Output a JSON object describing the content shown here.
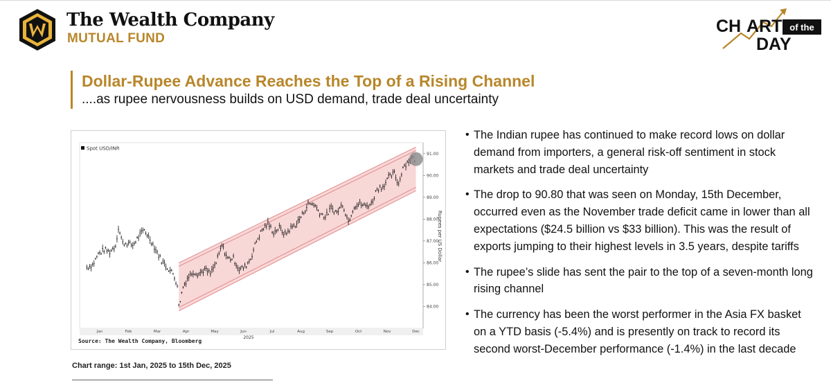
{
  "header": {
    "brand_name": "The Wealth Company",
    "brand_sub": "MUTUAL FUND",
    "badge_line1_a": "CH",
    "badge_line1_b": "ART",
    "badge_of_the": "of the",
    "badge_line2": "DAY",
    "brand_color": "#b8862a"
  },
  "title": "Dollar-Rupee Advance Reaches the Top of a Rising Channel",
  "subtitle": "....as rupee nervousness builds on USD demand, trade deal uncertainty",
  "chart_range": "Chart range: 1st Jan, 2025 to 15th Dec, 2025",
  "bullets": [
    "The Indian rupee has continued to make record lows on dollar demand from importers, a general risk-off sentiment in stock markets and trade deal uncertainty",
    "The drop to 90.80 that was seen on Monday, 15th December, occurred even as the November trade deficit came in lower than all expectations ($24.5 billion vs $33 billion). This was the result of exports jumping to their highest levels in 3.5 years, despite tariffs",
    "The rupee’s slide has sent the pair to the top of a seven-month long rising channel",
    "The currency has been the worst performer in the Asia FX basket on a YTD basis (-5.4%) and is presently on track to record its second worst-December performance (-1.4%) in the last decade"
  ],
  "chart_data": {
    "type": "ohlc",
    "legend": "Spot USD/INR",
    "ylabel": "Rupees per US Dollar",
    "xlabel": "2025",
    "source": "Source: The Wealth Company, Bloomberg",
    "ylim": [
      83.0,
      91.5
    ],
    "y_ticks": [
      "84.00",
      "85.00",
      "86.00",
      "87.00",
      "88.00",
      "89.00",
      "90.00",
      "91.00"
    ],
    "x_ticks": [
      "Jan",
      "Feb",
      "Mar",
      "Apr",
      "May",
      "Jun",
      "Jul",
      "Aug",
      "Sep",
      "Oct",
      "Nov",
      "Dec"
    ],
    "month_values": [
      1,
      2,
      3,
      4,
      5,
      6,
      7,
      8,
      9,
      10,
      11,
      12
    ],
    "series": [
      {
        "x": [
          1.0,
          1.2,
          1.4,
          1.6,
          1.8,
          2.0,
          2.1,
          2.25,
          2.4,
          2.6,
          2.8,
          3.0,
          3.2,
          3.4,
          3.6,
          3.8,
          4.0,
          4.15,
          4.2,
          4.35,
          4.5,
          4.7,
          4.9,
          5.1,
          5.3,
          5.5,
          5.7,
          5.9,
          6.1,
          6.3,
          6.5,
          6.7,
          6.9,
          7.1,
          7.3,
          7.5,
          7.7,
          7.9,
          8.1,
          8.3,
          8.5,
          8.7,
          8.9,
          9.1,
          9.3,
          9.5,
          9.7,
          9.9,
          10.1,
          10.3,
          10.5,
          10.7,
          10.9,
          11.1,
          11.3,
          11.5,
          11.7,
          11.85,
          12.0,
          12.15,
          12.3,
          12.45
        ],
        "y": [
          85.8,
          85.9,
          86.4,
          86.6,
          86.5,
          86.8,
          87.6,
          86.9,
          86.9,
          86.8,
          87.2,
          87.5,
          87.1,
          86.6,
          86.1,
          85.8,
          85.5,
          85.0,
          84.0,
          84.9,
          85.3,
          85.6,
          85.5,
          85.7,
          85.5,
          86.0,
          86.8,
          86.2,
          86.2,
          85.7,
          85.8,
          86.2,
          87.0,
          87.5,
          87.8,
          87.4,
          87.6,
          87.3,
          87.6,
          87.8,
          88.2,
          88.7,
          88.7,
          88.3,
          88.1,
          88.5,
          88.3,
          88.7,
          87.9,
          88.6,
          88.7,
          88.6,
          88.7,
          89.4,
          89.5,
          89.9,
          90.1,
          89.6,
          90.4,
          90.6,
          90.8,
          90.7
        ]
      }
    ],
    "channel": {
      "upper": {
        "x": [
          4.2,
          12.45
        ],
        "y": [
          86.0,
          91.3
        ]
      },
      "lower": {
        "x": [
          4.2,
          12.45
        ],
        "y": [
          83.8,
          89.3
        ]
      }
    },
    "highlight": {
      "x": 12.45,
      "y": 90.75
    },
    "colors": {
      "bars": "#111111",
      "channel_fill": "#f6c9c9",
      "channel_line": "#e08a8a",
      "highlight": "#888888"
    }
  }
}
